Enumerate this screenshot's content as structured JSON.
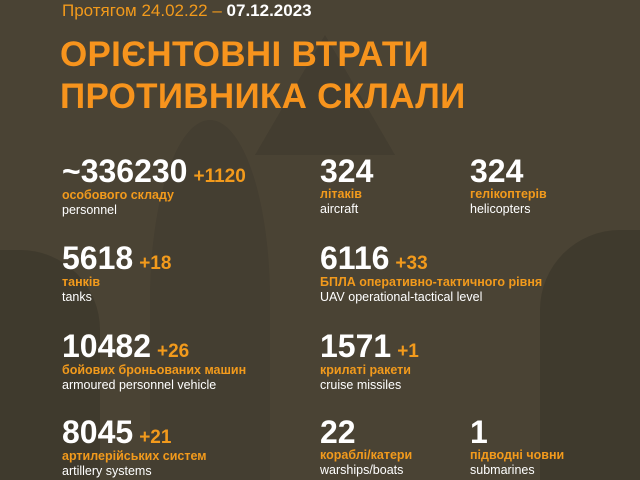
{
  "header": {
    "period_prefix": "Протягом 24.02.22 –",
    "period_end": "07.12.2023",
    "title_line1": "ОРІЄНТОВНІ ВТРАТИ",
    "title_line2": "ПРОТИВНИКА СКЛАЛИ"
  },
  "colors": {
    "background": "#4a4334",
    "accent": "#f29a1c",
    "text": "#ffffff"
  },
  "stats": [
    {
      "value": "~336230",
      "delta": "+1120",
      "ua": "особового складу",
      "en": "personnel"
    },
    {
      "value": "324",
      "delta": "",
      "ua": "літаків",
      "en": "aircraft"
    },
    {
      "value": "324",
      "delta": "",
      "ua": "гелікоптерів",
      "en": "helicopters"
    },
    {
      "value": "5618",
      "delta": "+18",
      "ua": "танків",
      "en": "tanks"
    },
    {
      "value": "6116",
      "delta": "+33",
      "ua": "БПЛА оперативно-тактичного рівня",
      "en": "UAV operational-tactical level"
    },
    {
      "value": "10482",
      "delta": "+26",
      "ua": "бойових броньованих машин",
      "en": "armoured personnel vehicle"
    },
    {
      "value": "1571",
      "delta": "+1",
      "ua": "крилаті ракети",
      "en": "cruise missiles"
    },
    {
      "value": "8045",
      "delta": "+21",
      "ua": "артилерійських систем",
      "en": "artillery systems"
    },
    {
      "value": "22",
      "delta": "",
      "ua": "кораблі/катери",
      "en": "warships/boats"
    },
    {
      "value": "1",
      "delta": "",
      "ua": "підводні човни",
      "en": "submarines"
    }
  ]
}
